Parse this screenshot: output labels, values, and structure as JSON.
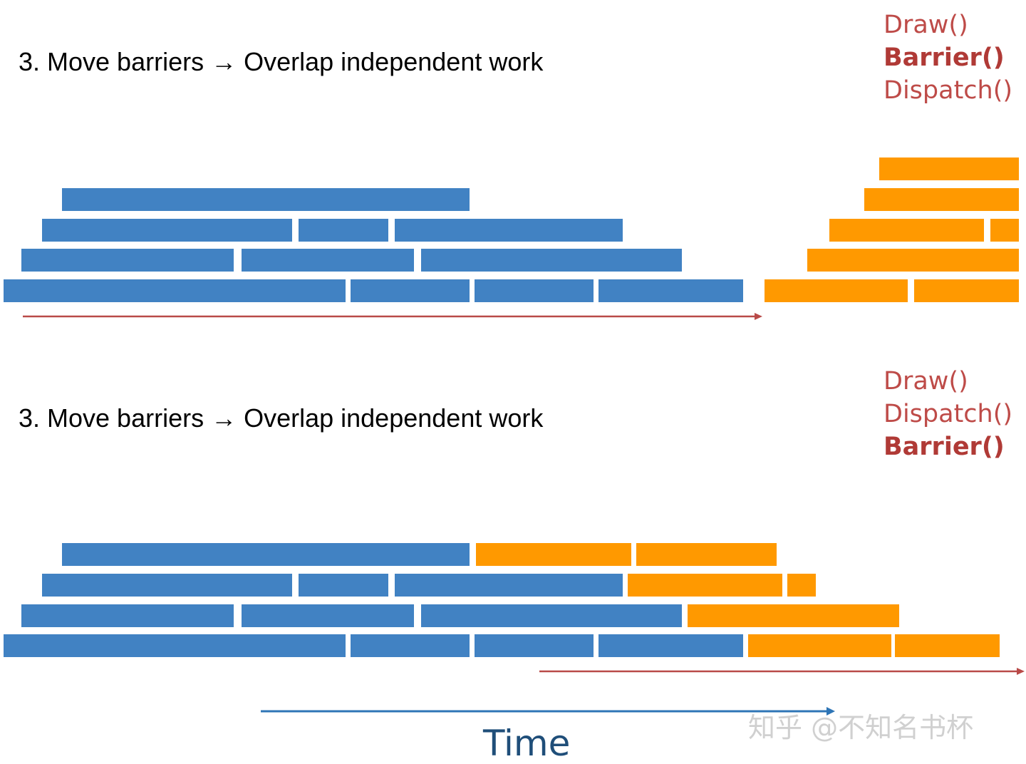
{
  "panels": [
    {
      "heading": "3. Move barriers → Overlap independent work",
      "calls": [
        {
          "text": "Draw()",
          "bold": false
        },
        {
          "text": "Barrier()",
          "bold": true
        },
        {
          "text": "Dispatch()",
          "bold": false
        }
      ],
      "task_colors": {
        "draw": "#4182c3",
        "dispatch": "#ff9900"
      }
    },
    {
      "heading": "3. Move barriers → Overlap independent work",
      "calls": [
        {
          "text": "Draw()",
          "bold": false
        },
        {
          "text": "Dispatch()",
          "bold": false
        },
        {
          "text": "Barrier()",
          "bold": true
        }
      ],
      "task_colors": {
        "draw": "#4182c3",
        "dispatch": "#ff9900"
      }
    }
  ],
  "timeline": {
    "label": "Time",
    "color": "#1f4e79"
  },
  "arrow_color": "#b94a48",
  "watermark": "知乎 @不知名书杯"
}
